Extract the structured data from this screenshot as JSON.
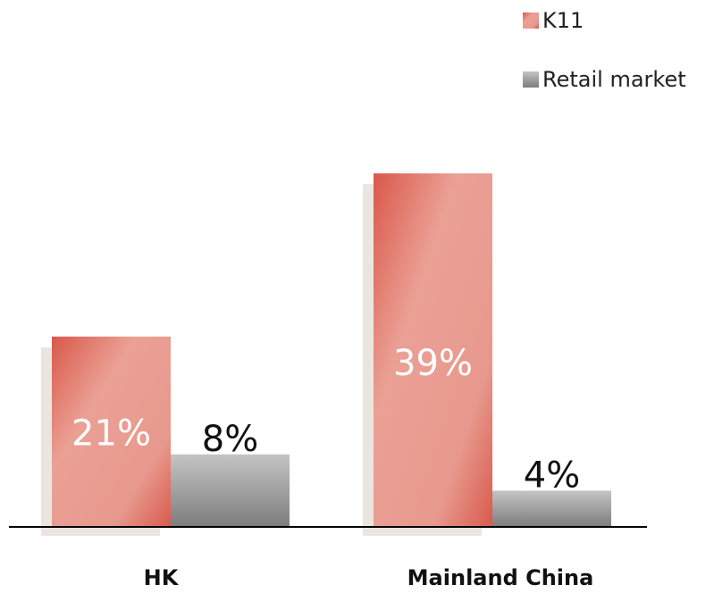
{
  "chart_data": {
    "type": "bar",
    "categories": [
      "HK",
      "Mainland China"
    ],
    "series": [
      {
        "name": "K11",
        "values": [
          21,
          39
        ],
        "labels": [
          "21%",
          "39%"
        ]
      },
      {
        "name": "Retail market",
        "values": [
          8,
          4
        ],
        "labels": [
          "8%",
          "4%"
        ]
      }
    ],
    "ylim": [
      0,
      40
    ],
    "grid": false,
    "legend_position": "top-right",
    "colors": {
      "k11_dark": "#d9584a",
      "k11_light": "#eba095",
      "retail_light": "#c4c4c4",
      "retail_dark": "#7d7d7d",
      "shadow": "#ebe5e0",
      "axis": "#000000"
    }
  }
}
